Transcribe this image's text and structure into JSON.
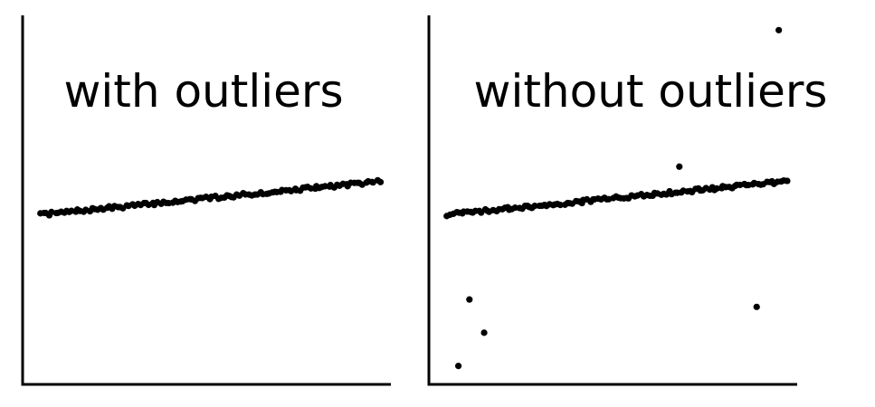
{
  "chart_data": [
    {
      "type": "scatter",
      "title": "with outliers",
      "xlim": [
        0,
        100
      ],
      "ylim": [
        0,
        100
      ],
      "grid": false,
      "trend": {
        "x_start": 5,
        "x_end": 97,
        "y_start": 46,
        "y_end": 55
      },
      "n_points": 120,
      "outliers": []
    },
    {
      "type": "scatter",
      "title": "without outliers",
      "xlim": [
        0,
        100
      ],
      "ylim": [
        0,
        100
      ],
      "grid": false,
      "trend": {
        "x_start": 5,
        "x_end": 97,
        "y_start": 46,
        "y_end": 55
      },
      "n_points": 120,
      "outliers": [
        {
          "x": 95,
          "y": 96
        },
        {
          "x": 68,
          "y": 59
        },
        {
          "x": 11,
          "y": 23
        },
        {
          "x": 15,
          "y": 14
        },
        {
          "x": 89,
          "y": 21
        },
        {
          "x": 8,
          "y": 5
        }
      ]
    }
  ]
}
